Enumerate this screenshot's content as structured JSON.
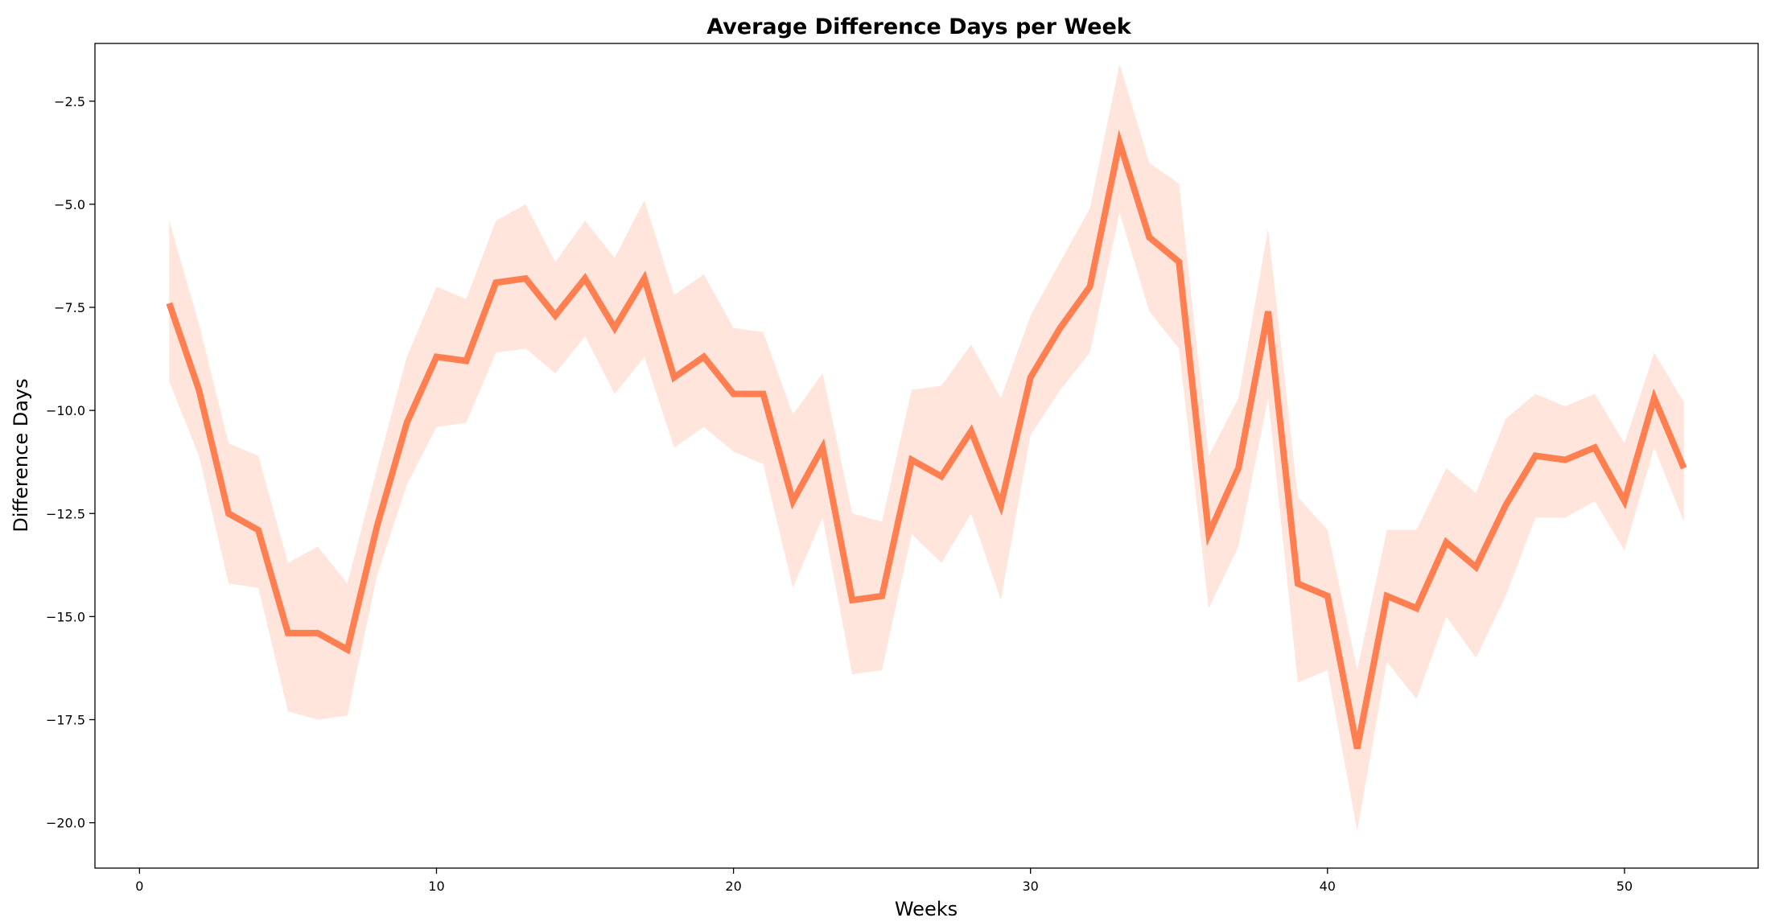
{
  "chart_data": {
    "type": "line",
    "title": "Average Difference Days per Week",
    "xlabel": "Weeks",
    "ylabel": "Difference Days",
    "xlim": [
      -1.5,
      54.5
    ],
    "ylim": [
      -21.1,
      -1.1
    ],
    "x_ticks": [
      0,
      10,
      20,
      30,
      40,
      50
    ],
    "y_ticks": [
      -2.5,
      -5.0,
      -7.5,
      -10.0,
      -12.5,
      -15.0,
      -17.5,
      -20.0
    ],
    "x_tick_labels": [
      "0",
      "10",
      "20",
      "30",
      "40",
      "50"
    ],
    "y_tick_labels": [
      "−2.5",
      "−5.0",
      "−7.5",
      "−10.0",
      "−12.5",
      "−15.0",
      "−17.5",
      "−20.0"
    ],
    "grid": false,
    "series": [
      {
        "color": "#ff7f50",
        "x": [
          1,
          2,
          3,
          4,
          5,
          6,
          7,
          8,
          9,
          10,
          11,
          12,
          13,
          14,
          15,
          16,
          17,
          18,
          19,
          20,
          21,
          22,
          23,
          24,
          25,
          26,
          27,
          28,
          29,
          30,
          31,
          32,
          33,
          34,
          35,
          36,
          37,
          38,
          39,
          40,
          41,
          42,
          43,
          44,
          45,
          46,
          47,
          48,
          49,
          50,
          51,
          52
        ],
        "y": [
          -7.4,
          -9.5,
          -12.5,
          -12.9,
          -15.4,
          -15.4,
          -15.8,
          -12.8,
          -10.3,
          -8.7,
          -8.8,
          -6.9,
          -6.8,
          -7.7,
          -6.8,
          -8.0,
          -6.8,
          -9.2,
          -8.7,
          -9.6,
          -9.6,
          -12.2,
          -10.9,
          -14.6,
          -14.5,
          -11.2,
          -11.6,
          -10.5,
          -12.3,
          -9.2,
          -8.0,
          -7.0,
          -3.5,
          -5.8,
          -6.4,
          -13.0,
          -11.4,
          -7.6,
          -14.2,
          -14.5,
          -18.2,
          -14.5,
          -14.8,
          -13.2,
          -13.8,
          -12.3,
          -11.1,
          -11.2,
          -10.9,
          -12.2,
          -9.7,
          -11.4
        ],
        "ci_upper": [
          -5.4,
          -7.9,
          -10.8,
          -11.1,
          -13.7,
          -13.3,
          -14.2,
          -11.4,
          -8.7,
          -7.0,
          -7.3,
          -5.4,
          -5.0,
          -6.4,
          -5.4,
          -6.3,
          -4.9,
          -7.2,
          -6.7,
          -8.0,
          -8.1,
          -10.1,
          -9.1,
          -12.5,
          -12.7,
          -9.5,
          -9.4,
          -8.4,
          -9.7,
          -7.7,
          -6.4,
          -5.1,
          -1.6,
          -4.0,
          -4.5,
          -11.1,
          -9.7,
          -5.6,
          -12.1,
          -12.9,
          -16.3,
          -12.9,
          -12.9,
          -11.4,
          -12.0,
          -10.2,
          -9.6,
          -9.9,
          -9.6,
          -10.8,
          -8.6,
          -9.8
        ],
        "ci_lower": [
          -9.3,
          -11.1,
          -14.2,
          -14.3,
          -17.3,
          -17.5,
          -17.4,
          -14.0,
          -11.8,
          -10.4,
          -10.3,
          -8.6,
          -8.5,
          -9.1,
          -8.2,
          -9.6,
          -8.7,
          -10.9,
          -10.4,
          -11.0,
          -11.3,
          -14.3,
          -12.6,
          -16.4,
          -16.3,
          -13.0,
          -13.7,
          -12.5,
          -14.6,
          -10.6,
          -9.5,
          -8.6,
          -5.2,
          -7.6,
          -8.5,
          -14.8,
          -13.3,
          -9.7,
          -16.6,
          -16.3,
          -20.2,
          -16.1,
          -17.0,
          -15.0,
          -16.0,
          -14.5,
          -12.6,
          -12.6,
          -12.2,
          -13.4,
          -10.9,
          -12.7
        ]
      }
    ]
  }
}
